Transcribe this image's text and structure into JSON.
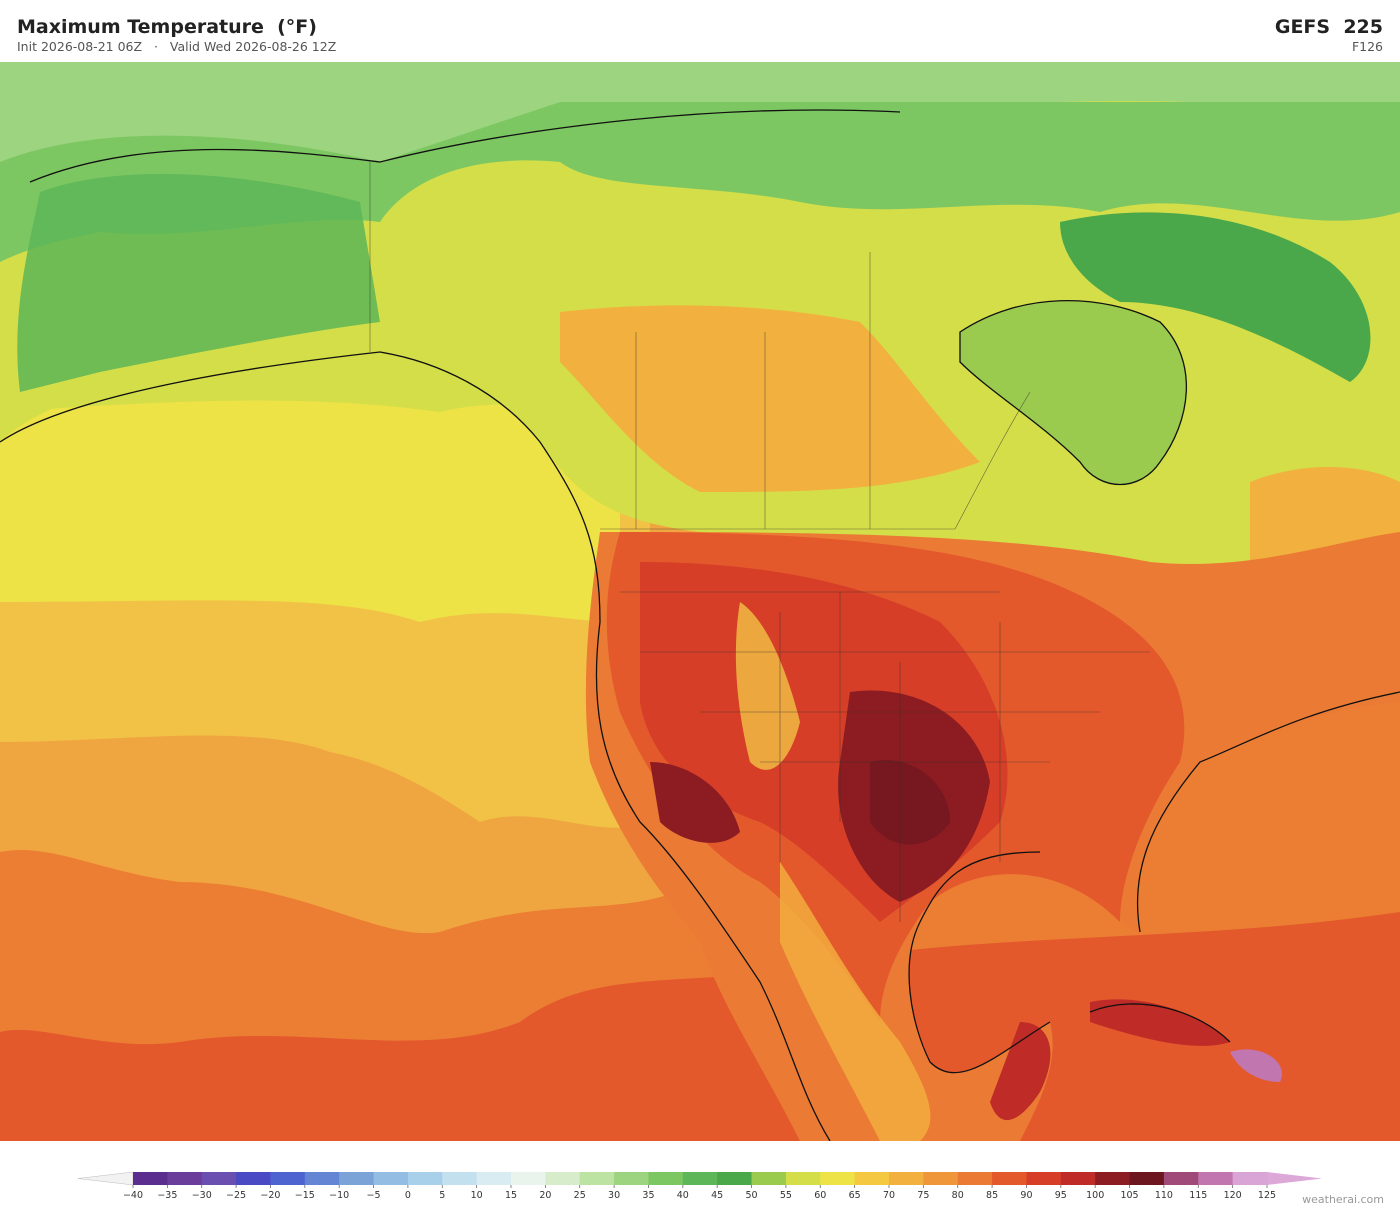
{
  "header": {
    "title": "Maximum Temperature  (°F)",
    "init": "Init 2026-08-21 06Z",
    "separator": "·",
    "valid": "Valid Wed 2026-08-26 12Z",
    "model": "GEFS  225",
    "forecast_hour": "F126"
  },
  "colorbar": {
    "ticks": [
      {
        "value": -40,
        "label": "−40"
      },
      {
        "value": -35,
        "label": "−35"
      },
      {
        "value": -30,
        "label": "−30"
      },
      {
        "value": -25,
        "label": "−25"
      },
      {
        "value": -20,
        "label": "−20"
      },
      {
        "value": -15,
        "label": "−15"
      },
      {
        "value": -10,
        "label": "−10"
      },
      {
        "value": -5,
        "label": "−5"
      },
      0,
      5,
      10,
      15,
      20,
      25,
      30,
      35,
      40,
      45,
      50,
      55,
      60,
      65,
      70,
      75,
      80,
      85,
      90,
      95,
      100,
      105,
      110,
      115,
      120,
      125
    ],
    "colors": [
      "#5b2d8e",
      "#6a3d9a",
      "#6a4fb0",
      "#4a4bc4",
      "#4d63cf",
      "#6385d4",
      "#7ba3d8",
      "#93bde2",
      "#a8d0ea",
      "#c3e0ef",
      "#d9ecf2",
      "#e8f4ec",
      "#d7eccb",
      "#bde3a2",
      "#9dd47f",
      "#7dc763",
      "#5db657",
      "#4aa84a",
      "#9acb4f",
      "#d4de48",
      "#ede246",
      "#f5c842",
      "#f2b03e",
      "#ef963a",
      "#eb7b34",
      "#e3592c",
      "#d63e27",
      "#bf2b26",
      "#8c1c21",
      "#6e1620",
      "#a04a7a",
      "#c176b0",
      "#d9a5d6"
    ],
    "under_color": "#f2f2f2",
    "over_color": "#dca8d8"
  },
  "watermark": "weatherai.com"
}
